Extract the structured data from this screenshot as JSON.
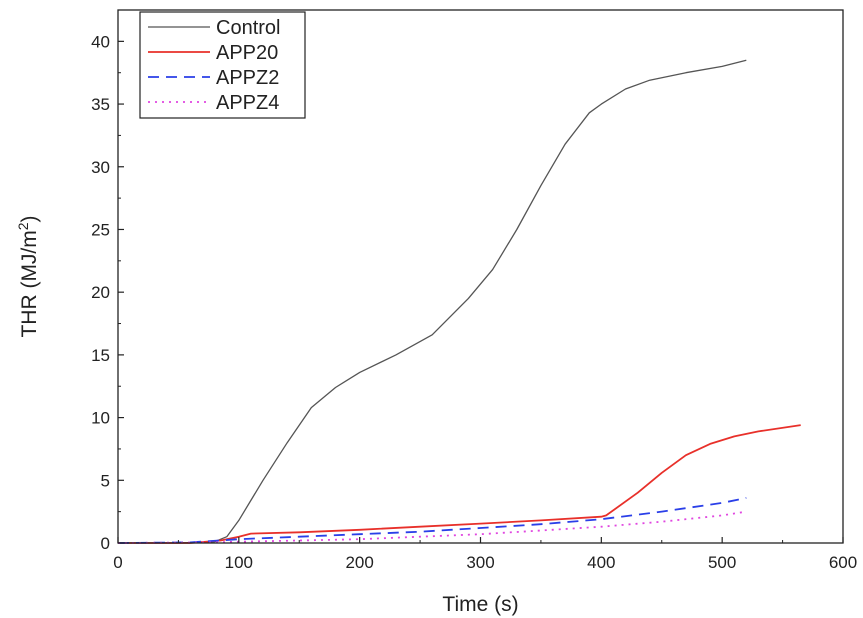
{
  "chart_data": {
    "type": "line",
    "xlabel": "Time (s)",
    "ylabel": {
      "main": "THR (MJ/m",
      "sup": "2",
      "end": ")"
    },
    "xlim": [
      0,
      600
    ],
    "ylim": [
      0,
      42.5
    ],
    "xticks": [
      0,
      100,
      200,
      300,
      400,
      500,
      600
    ],
    "yticks": [
      0,
      5,
      10,
      15,
      20,
      25,
      30,
      35,
      40
    ],
    "grid": false,
    "legend": "top-left",
    "series": [
      {
        "name": "Control",
        "color": "#555555",
        "dash": "solid",
        "x": [
          0,
          50,
          80,
          90,
          100,
          120,
          140,
          160,
          180,
          200,
          230,
          260,
          290,
          310,
          330,
          350,
          370,
          390,
          400,
          420,
          440,
          470,
          500,
          520
        ],
        "y": [
          0,
          0,
          0.1,
          0.5,
          1.8,
          5,
          8,
          10.8,
          12.4,
          13.6,
          15,
          16.6,
          19.5,
          21.8,
          25,
          28.5,
          31.8,
          34.3,
          35,
          36.2,
          36.9,
          37.5,
          38,
          38.5
        ]
      },
      {
        "name": "APP20",
        "color": "#e8302a",
        "dash": "solid",
        "x": [
          0,
          60,
          85,
          100,
          110,
          150,
          200,
          250,
          300,
          350,
          400,
          404,
          430,
          450,
          470,
          490,
          510,
          530,
          565
        ],
        "y": [
          0,
          0,
          0.2,
          0.5,
          0.75,
          0.85,
          1.05,
          1.3,
          1.55,
          1.8,
          2.1,
          2.2,
          4,
          5.6,
          7,
          7.9,
          8.5,
          8.9,
          9.4
        ]
      },
      {
        "name": "APPZ2",
        "color": "#2a3fe8",
        "dash": "11,7",
        "x": [
          0,
          60,
          100,
          150,
          200,
          250,
          300,
          350,
          400,
          450,
          500,
          520
        ],
        "y": [
          0,
          0.05,
          0.3,
          0.5,
          0.7,
          0.9,
          1.2,
          1.5,
          1.9,
          2.5,
          3.2,
          3.6
        ]
      },
      {
        "name": "APPZ4",
        "color": "#e046e0",
        "dash": "2,5",
        "x": [
          0,
          80,
          100,
          150,
          200,
          250,
          300,
          350,
          400,
          450,
          500,
          520
        ],
        "y": [
          0,
          0.05,
          0.1,
          0.2,
          0.3,
          0.5,
          0.7,
          1.0,
          1.3,
          1.7,
          2.2,
          2.5
        ]
      }
    ]
  }
}
